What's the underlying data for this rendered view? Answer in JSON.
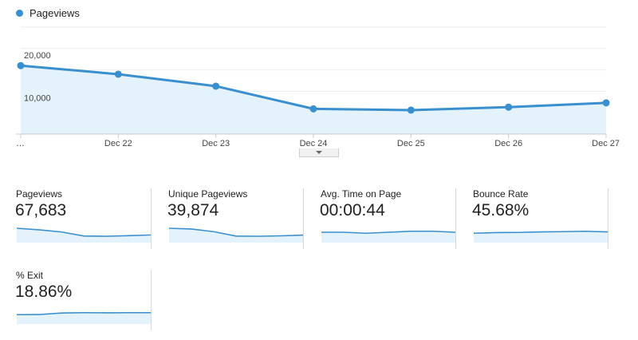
{
  "legend": {
    "label": "Pageviews",
    "color": "#3a8fcf"
  },
  "chart_data": {
    "type": "area",
    "series": [
      {
        "name": "Pageviews",
        "values": [
          16000,
          14000,
          11200,
          5900,
          5600,
          6300,
          7300
        ]
      }
    ],
    "categories": [
      "…",
      "Dec 22",
      "Dec 23",
      "Dec 24",
      "Dec 25",
      "Dec 26",
      "Dec 27"
    ],
    "y_ticks": [
      "20,000",
      "10,000"
    ],
    "y_tick_values": [
      20000,
      10000
    ],
    "ylim": [
      0,
      25000
    ],
    "grid": true,
    "colors": {
      "line": "#3a8fcf",
      "fill": "#e3f2fb",
      "grid": "#eeeeee",
      "axis": "#cccccc"
    }
  },
  "tiles": [
    {
      "label": "Pageviews",
      "value": "67,683",
      "spark": [
        16000,
        14000,
        11200,
        5900,
        5600,
        6300,
        7300
      ]
    },
    {
      "label": "Unique Pageviews",
      "value": "39,874",
      "spark": [
        9600,
        9000,
        7000,
        3600,
        3500,
        3800,
        4400
      ]
    },
    {
      "label": "Avg. Time on Page",
      "value": "00:00:44",
      "spark": [
        44,
        44,
        43,
        44,
        45,
        45,
        44
      ]
    },
    {
      "label": "Bounce Rate",
      "value": "45.68%",
      "spark": [
        45,
        45.5,
        45.6,
        46,
        46.2,
        46.5,
        46
      ]
    },
    {
      "label": "% Exit",
      "value": "18.86%",
      "spark": [
        17.5,
        17.6,
        19,
        19.3,
        19.2,
        19.3,
        19.3
      ]
    }
  ]
}
